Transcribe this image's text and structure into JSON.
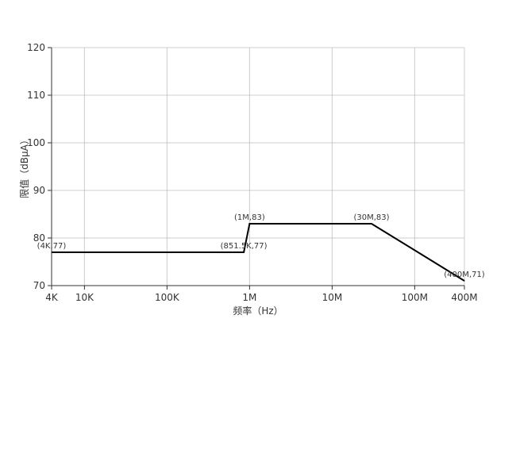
{
  "chart_data": {
    "type": "line",
    "xlabel": "频率（Hz）",
    "ylabel": "限值（dBμA）",
    "x_scale": "log",
    "xlim": [
      4000,
      400000000
    ],
    "ylim": [
      70,
      120
    ],
    "grid": true,
    "x_ticks": [
      {
        "value": 4000,
        "label": "4K"
      },
      {
        "value": 10000,
        "label": "10K"
      },
      {
        "value": 100000,
        "label": "100K"
      },
      {
        "value": 1000000,
        "label": "1M"
      },
      {
        "value": 10000000,
        "label": "10M"
      },
      {
        "value": 100000000,
        "label": "100M"
      },
      {
        "value": 400000000,
        "label": "400M"
      }
    ],
    "y_ticks": [
      70,
      80,
      90,
      100,
      110,
      120
    ],
    "series": [
      {
        "points": [
          {
            "x": 4000,
            "y": 77,
            "label": "(4K,77)"
          },
          {
            "x": 851500,
            "y": 77,
            "label": "(851.5K,77)"
          },
          {
            "x": 1000000,
            "y": 83,
            "label": "(1M,83)"
          },
          {
            "x": 30000000,
            "y": 83,
            "label": "(30M,83)"
          },
          {
            "x": 400000000,
            "y": 71,
            "label": "(400M,71)"
          }
        ]
      }
    ],
    "colors": {
      "line": "#000000",
      "grid": "#cccccc",
      "axis": "#333333"
    }
  }
}
